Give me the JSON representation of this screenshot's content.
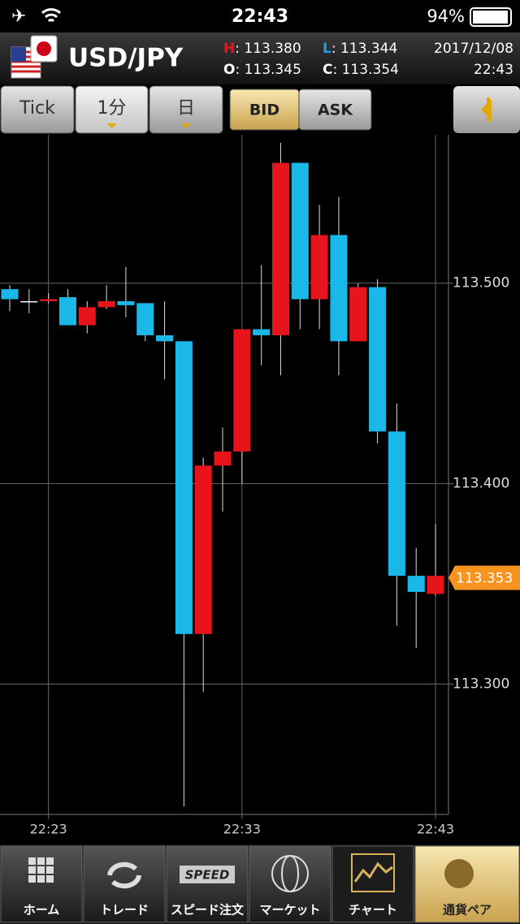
{
  "status_bar": {
    "time": "22:43",
    "battery": "94%"
  },
  "header": {
    "pair": "USD/JPY",
    "quotes": [
      {
        "key": "H",
        "value": ": 113.380"
      },
      {
        "key": "L",
        "value": ": 113.344"
      },
      {
        "key": "O",
        "value": ": 113.345"
      },
      {
        "key": "C",
        "value": ": 113.354"
      }
    ],
    "date": "2017/12/08",
    "time": "22:43"
  },
  "toolbar": {
    "buttons": [
      "Tick",
      "1分",
      "日"
    ],
    "price_toggle": [
      "BID",
      "ASK"
    ]
  },
  "chart_data": {
    "type": "candlestick",
    "categories": [
      null,
      null,
      "22:23",
      null,
      null,
      null,
      null,
      null,
      null,
      null,
      null,
      null,
      "22:33",
      null,
      null,
      null,
      null,
      null,
      null,
      null,
      null,
      null,
      "22:43"
    ],
    "open": [
      113.497,
      113.491,
      113.491,
      113.493,
      113.479,
      113.488,
      113.491,
      113.49,
      113.474,
      113.471,
      113.325,
      113.409,
      113.416,
      113.477,
      113.474,
      113.56,
      113.492,
      113.524,
      113.471,
      113.498,
      113.426,
      113.354,
      113.345
    ],
    "high": [
      113.499,
      113.497,
      113.495,
      113.497,
      113.491,
      113.499,
      113.508,
      113.49,
      113.491,
      113.471,
      113.413,
      113.428,
      113.477,
      113.509,
      113.57,
      113.56,
      113.539,
      113.543,
      113.5,
      113.502,
      113.44,
      113.368,
      113.38
    ],
    "low": [
      113.486,
      113.485,
      113.49,
      113.479,
      113.475,
      113.487,
      113.483,
      113.471,
      113.452,
      113.239,
      113.296,
      113.386,
      113.4,
      113.459,
      113.454,
      113.477,
      113.477,
      113.454,
      113.471,
      113.42,
      113.329,
      113.318,
      113.344
    ],
    "close": [
      113.492,
      113.491,
      113.492,
      113.479,
      113.488,
      113.491,
      113.489,
      113.474,
      113.471,
      113.325,
      113.409,
      113.416,
      113.477,
      113.474,
      113.56,
      113.492,
      113.524,
      113.471,
      113.498,
      113.426,
      113.354,
      113.346,
      113.354
    ],
    "ylim": [
      113.235,
      113.574
    ],
    "yticks": [
      {
        "value": 113.3,
        "label": "113.300"
      },
      {
        "value": 113.4,
        "label": "113.400"
      },
      {
        "value": 113.5,
        "label": "113.500"
      }
    ],
    "grid": true,
    "up_color": "#e8141c",
    "down_color": "#1ab8e8",
    "flat_color": "#ffffff",
    "current_price": {
      "value": 113.353,
      "label": "113.353"
    },
    "current_price_color": "#f7931e"
  },
  "tab_bar": {
    "tabs": [
      "ホーム",
      "トレード",
      "スピード注文",
      "マーケット",
      "チャート",
      "通貨ペア"
    ],
    "speed_icon": "SPEED"
  }
}
